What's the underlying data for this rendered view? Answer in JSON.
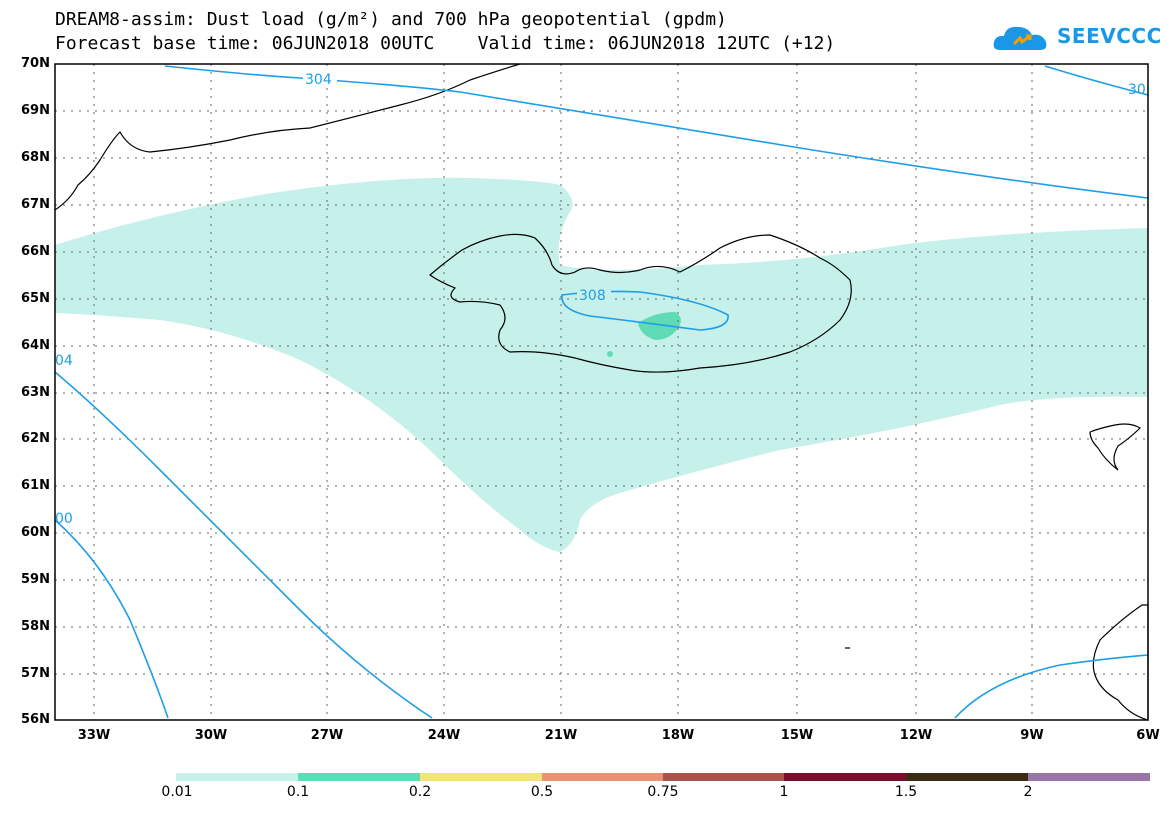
{
  "title": {
    "line1": "DREAM8-assim: Dust load (g/m²) and 700 hPa geopotential (gpdm)",
    "line2": "Forecast base time: 06JUN2018 00UTC    Valid time: 06JUN2018 12UTC (+12)"
  },
  "logo": {
    "text": "SEEVCCC",
    "icon": "cloud-icon",
    "color": "#1a97e6"
  },
  "axes": {
    "lat_labels": [
      "70N",
      "69N",
      "68N",
      "67N",
      "66N",
      "65N",
      "64N",
      "63N",
      "62N",
      "61N",
      "60N",
      "59N",
      "58N",
      "57N",
      "56N"
    ],
    "lon_labels": [
      "33W",
      "30W",
      "27W",
      "24W",
      "21W",
      "18W",
      "15W",
      "12W",
      "9W",
      "6W"
    ]
  },
  "contours": {
    "color": "#1e9ee8",
    "labels": [
      "304",
      "308",
      "30",
      "04",
      "00"
    ]
  },
  "colorbar": {
    "labels": [
      "0.01",
      "0.1",
      "0.2",
      "0.5",
      "0.75",
      "1",
      "1.5",
      "2"
    ],
    "colors": [
      "#c6f0ea",
      "#5fdbb5",
      "#f3e37d",
      "#e99270",
      "#a8544c",
      "#7a0e2c",
      "#3b2a14",
      "#9a76a8"
    ]
  },
  "fill_colors": {
    "dust_low": "#c6f0ea",
    "dust_mid": "#5fdbb5"
  }
}
